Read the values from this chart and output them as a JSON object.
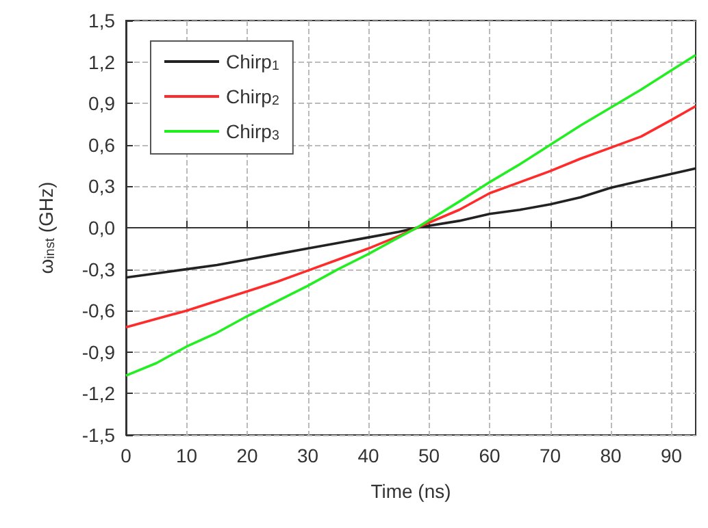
{
  "chart_data": {
    "type": "line",
    "xlabel": "Time (ns)",
    "ylabel": "ω$_{inst}$ (GHz)",
    "xlim": [
      0,
      94
    ],
    "xticks": [
      0,
      10,
      20,
      30,
      40,
      50,
      60,
      70,
      80,
      90
    ],
    "ylim": [
      -1.5,
      1.5
    ],
    "yticks": [
      {
        "value": -1.5,
        "label": "-1,5"
      },
      {
        "value": -1.2,
        "label": "-1,2"
      },
      {
        "value": -0.9,
        "label": "-0,9"
      },
      {
        "value": -0.6,
        "label": "-0,6"
      },
      {
        "value": -0.3,
        "label": "-0,3"
      },
      {
        "value": 0,
        "label": "0,0"
      },
      {
        "value": 0.3,
        "label": "0,3"
      },
      {
        "value": 0.6,
        "label": "0,6"
      },
      {
        "value": 0.9,
        "label": "0,9"
      },
      {
        "value": 1.2,
        "label": "1,2"
      },
      {
        "value": 1.5,
        "label": "1,5"
      }
    ],
    "grid": true,
    "legend": "top left",
    "marker": "none",
    "line_style": "solid",
    "x": [
      0,
      5,
      10,
      15,
      20,
      25,
      30,
      35,
      40,
      45,
      48,
      55,
      60,
      65,
      70,
      75,
      80,
      85,
      90,
      94
    ],
    "series": [
      {
        "name": "Chirp$_{1}$",
        "color": "#222222",
        "values": [
          -0.36,
          -0.33,
          -0.3,
          -0.27,
          -0.23,
          -0.19,
          -0.15,
          -0.11,
          -0.07,
          -0.03,
          0,
          0.05,
          0.1,
          0.13,
          0.17,
          0.22,
          0.29,
          0.34,
          0.39,
          0.43
        ]
      },
      {
        "name": "Chirp$_{2}$",
        "color": "#ff2a2a",
        "values": [
          -0.72,
          -0.66,
          -0.6,
          -0.53,
          -0.46,
          -0.39,
          -0.31,
          -0.23,
          -0.15,
          -0.06,
          0,
          0.13,
          0.25,
          0.33,
          0.41,
          0.5,
          0.58,
          0.66,
          0.78,
          0.88
        ]
      },
      {
        "name": "Chirp$_{3}$",
        "color": "#22ee22",
        "values": [
          -1.07,
          -0.98,
          -0.86,
          -0.76,
          -0.64,
          -0.53,
          -0.42,
          -0.3,
          -0.19,
          -0.07,
          0,
          0.19,
          0.33,
          0.46,
          0.6,
          0.74,
          0.87,
          1.0,
          1.14,
          1.25
        ]
      }
    ]
  }
}
